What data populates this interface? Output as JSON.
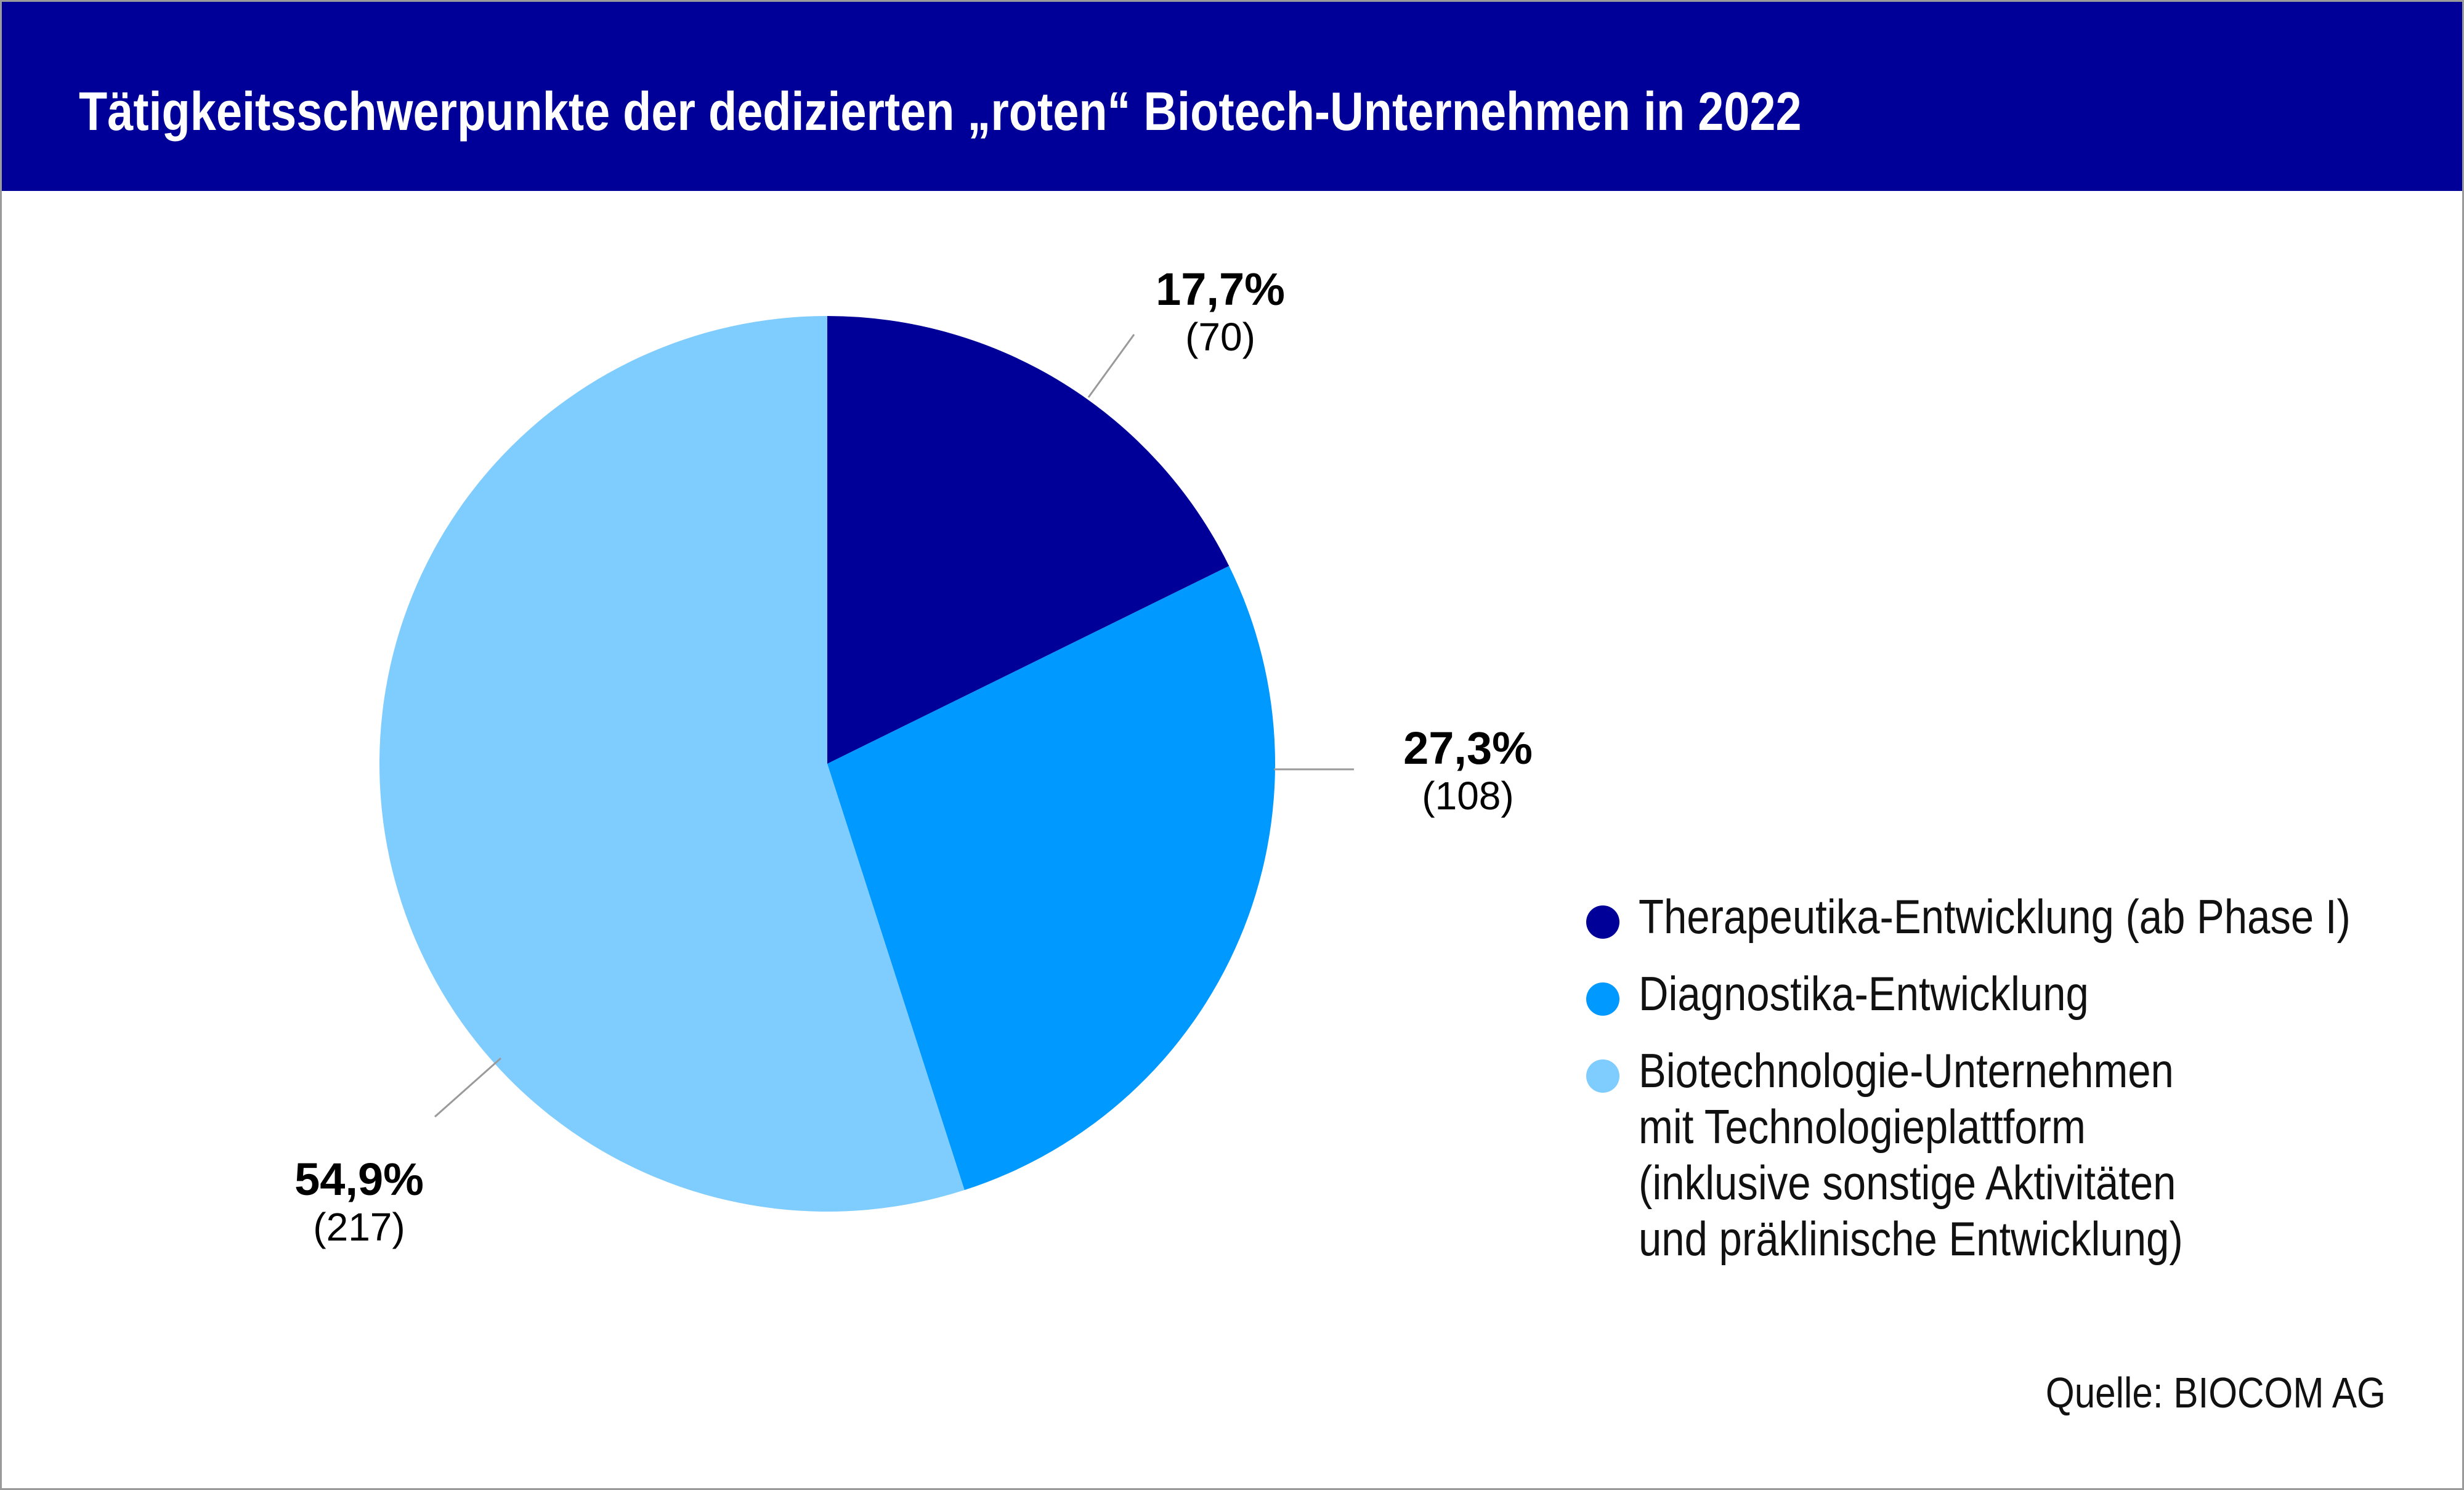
{
  "title": "Tätigkeitsschwerpunkte der dedizierten „roten“ Biotech-Unternehmen in 2022",
  "source": "Quelle: BIOCOM AG",
  "chart_data": {
    "type": "pie",
    "title": "Tätigkeitsschwerpunkte der dedizierten „roten“ Biotech-Unternehmen in 2022",
    "start": "12 o'clock",
    "direction": "clockwise",
    "legend_position": "right",
    "slices": [
      {
        "name": "Therapeutika-Entwicklung (ab Phase I)",
        "label": "Therapeutika-Entwicklung (ab Phase I)",
        "percent": 17.7,
        "count": 70,
        "pct_label": "17,7%",
        "count_label": "(70)",
        "color": "#000099"
      },
      {
        "name": "Diagnostika-Entwicklung",
        "label": "Diagnostika-Entwicklung",
        "percent": 27.3,
        "count": 108,
        "pct_label": "27,3%",
        "count_label": "(108)",
        "color": "#0099ff"
      },
      {
        "name": "Biotechnologie-Unternehmen mit Technologieplattform (inklusive sonstige Aktivitäten und präklinische Entwicklung)",
        "label": "Biotechnologie-Unternehmen mit Technologieplattform (inklusive sonstige Aktivitäten und präklinische Entwicklung)",
        "percent": 54.9,
        "count": 217,
        "pct_label": "54,9%",
        "count_label": "(217)",
        "color": "#7fccff"
      }
    ]
  }
}
